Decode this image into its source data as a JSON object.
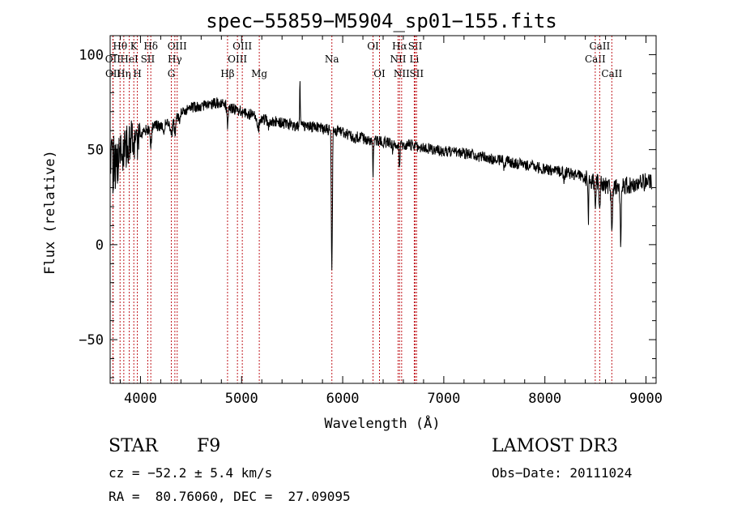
{
  "chart_data": {
    "type": "line",
    "title": "spec−55859−M5904_sp01−155.fits",
    "xlabel": "Wavelength (Å)",
    "ylabel": "Flux (relative)",
    "xlim": [
      3700,
      9100
    ],
    "ylim": [
      -73,
      110
    ],
    "xticks": [
      4000,
      5000,
      6000,
      7000,
      8000,
      9000
    ],
    "yticks": [
      -50,
      0,
      50,
      100
    ],
    "ytick_labels": [
      "−50",
      "0",
      "50",
      "100"
    ],
    "series": [
      {
        "name": "flux",
        "continuum": [
          [
            3700,
            42
          ],
          [
            3800,
            48
          ],
          [
            3900,
            55
          ],
          [
            4000,
            58
          ],
          [
            4100,
            62
          ],
          [
            4200,
            63
          ],
          [
            4300,
            65
          ],
          [
            4400,
            69
          ],
          [
            4500,
            72
          ],
          [
            4600,
            73
          ],
          [
            4700,
            74
          ],
          [
            4800,
            75
          ],
          [
            4900,
            72
          ],
          [
            5000,
            70
          ],
          [
            5100,
            68
          ],
          [
            5200,
            66
          ],
          [
            5300,
            65
          ],
          [
            5400,
            64
          ],
          [
            5500,
            63
          ],
          [
            5600,
            62
          ],
          [
            5700,
            62
          ],
          [
            5800,
            61
          ],
          [
            5900,
            60
          ],
          [
            6000,
            59
          ],
          [
            6100,
            57
          ],
          [
            6200,
            56
          ],
          [
            6300,
            55
          ],
          [
            6400,
            54
          ],
          [
            6500,
            53
          ],
          [
            6600,
            53
          ],
          [
            6700,
            52
          ],
          [
            6800,
            51
          ],
          [
            6900,
            50
          ],
          [
            7000,
            49
          ],
          [
            7100,
            49
          ],
          [
            7200,
            48
          ],
          [
            7300,
            47
          ],
          [
            7400,
            46
          ],
          [
            7500,
            45
          ],
          [
            7600,
            44
          ],
          [
            7700,
            43
          ],
          [
            7800,
            42
          ],
          [
            7900,
            41
          ],
          [
            8000,
            40
          ],
          [
            8100,
            39
          ],
          [
            8200,
            38
          ],
          [
            8300,
            37
          ],
          [
            8400,
            35
          ],
          [
            8500,
            33
          ],
          [
            8600,
            31
          ],
          [
            8700,
            30
          ],
          [
            8800,
            31
          ],
          [
            8900,
            32
          ],
          [
            9000,
            33
          ],
          [
            9100,
            34
          ]
        ],
        "absorption": [
          [
            3934,
            5,
            6
          ],
          [
            3969,
            5,
            5
          ],
          [
            4102,
            6,
            10
          ],
          [
            4227,
            6,
            4
          ],
          [
            4305,
            10,
            8
          ],
          [
            4341,
            6,
            8
          ],
          [
            4384,
            6,
            4
          ],
          [
            4861,
            6,
            10
          ],
          [
            5167,
            8,
            5
          ],
          [
            5270,
            6,
            3
          ],
          [
            5890,
            4,
            50
          ],
          [
            5896,
            4,
            45
          ],
          [
            6122,
            5,
            3
          ],
          [
            6300,
            3,
            20
          ],
          [
            6495,
            5,
            3
          ],
          [
            6563,
            5,
            14
          ],
          [
            7600,
            5,
            5
          ],
          [
            8190,
            6,
            4
          ],
          [
            8430,
            4,
            20
          ],
          [
            8498,
            5,
            12
          ],
          [
            8542,
            5,
            15
          ],
          [
            8662,
            6,
            20
          ],
          [
            8750,
            5,
            30
          ]
        ],
        "emission": [
          [
            5577,
            3,
            25
          ]
        ],
        "noise_amplitude_red": 6,
        "noise_amplitude_blue": 30
      }
    ],
    "lines": [
      {
        "name": "Hθ",
        "wave": 3798,
        "row": 0
      },
      {
        "name": "Hη",
        "wave": 3835,
        "row": 2
      },
      {
        "name": "OII",
        "wave": 3727,
        "row": 1
      },
      {
        "name": "OII",
        "wave": 3729,
        "row": 2
      },
      {
        "name": "HeI",
        "wave": 3889,
        "row": 1
      },
      {
        "name": "K",
        "wave": 3934,
        "row": 0
      },
      {
        "name": "H",
        "wave": 3969,
        "row": 2
      },
      {
        "name": "SII",
        "wave": 4072,
        "row": 1
      },
      {
        "name": "Hδ",
        "wave": 4102,
        "row": 0
      },
      {
        "name": "G",
        "wave": 4305,
        "row": 2
      },
      {
        "name": "Hγ",
        "wave": 4340,
        "row": 1
      },
      {
        "name": "OIII",
        "wave": 4363,
        "row": 0
      },
      {
        "name": "Hβ",
        "wave": 4861,
        "row": 2
      },
      {
        "name": "OIII",
        "wave": 4959,
        "row": 1
      },
      {
        "name": "OIII",
        "wave": 5007,
        "row": 0
      },
      {
        "name": "Mg",
        "wave": 5175,
        "row": 2
      },
      {
        "name": "Na",
        "wave": 5893,
        "row": 1
      },
      {
        "name": "OI",
        "wave": 6300,
        "row": 0
      },
      {
        "name": "OI",
        "wave": 6364,
        "row": 2
      },
      {
        "name": "NII",
        "wave": 6548,
        "row": 1
      },
      {
        "name": "Hα",
        "wave": 6563,
        "row": 0
      },
      {
        "name": "NII",
        "wave": 6583,
        "row": 2
      },
      {
        "name": "Li",
        "wave": 6708,
        "row": 1
      },
      {
        "name": "SII",
        "wave": 6717,
        "row": 0
      },
      {
        "name": "SII",
        "wave": 6731,
        "row": 2
      },
      {
        "name": "CaII",
        "wave": 8498,
        "row": 1
      },
      {
        "name": "CaII",
        "wave": 8542,
        "row": 0
      },
      {
        "name": "CaII",
        "wave": 8662,
        "row": 2
      }
    ]
  },
  "info": {
    "object_class": "STAR",
    "subclass": "F9",
    "survey": "LAMOST DR3",
    "redshift": "cz = −52.2 ± 5.4 km/s",
    "obs_date": "Obs−Date: 20111024",
    "coords": "RA =  80.76060, DEC =  27.09095"
  },
  "colors": {
    "spectrum": "#000000",
    "line_markers": "#c0181e",
    "axes": "#000000",
    "background": "#ffffff"
  }
}
